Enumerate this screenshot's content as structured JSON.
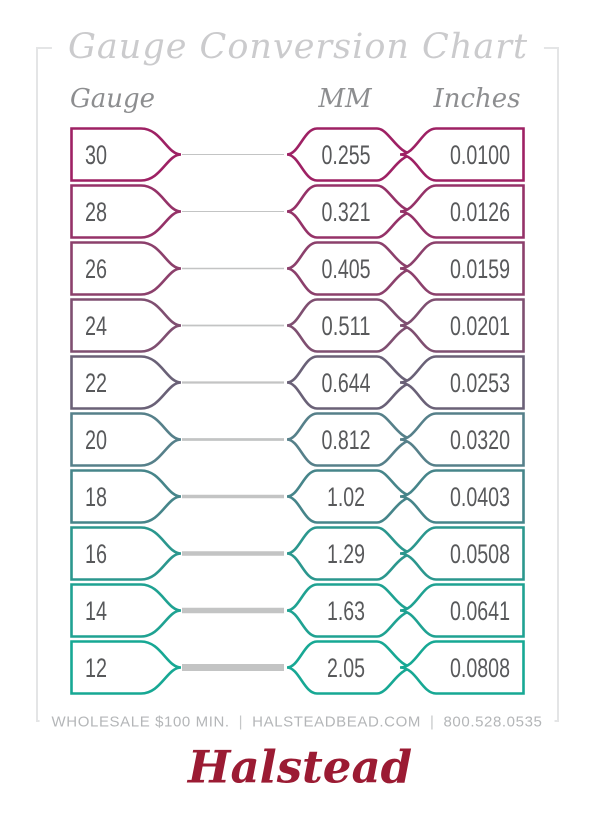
{
  "page": {
    "title": "Gauge Conversion Chart"
  },
  "columns": {
    "gauge": "Gauge",
    "mm": "MM",
    "inches": "Inches"
  },
  "rows": [
    {
      "gauge": "30",
      "mm": "0.255",
      "inches": "0.0100",
      "color": "#9e2164"
    },
    {
      "gauge": "28",
      "mm": "0.321",
      "inches": "0.0126",
      "color": "#953268"
    },
    {
      "gauge": "26",
      "mm": "0.405",
      "inches": "0.0159",
      "color": "#8c406c"
    },
    {
      "gauge": "24",
      "mm": "0.511",
      "inches": "0.0201",
      "color": "#7f4f71"
    },
    {
      "gauge": "22",
      "mm": "0.644",
      "inches": "0.0253",
      "color": "#6a6177"
    },
    {
      "gauge": "20",
      "mm": "0.812",
      "inches": "0.0320",
      "color": "#56808a"
    },
    {
      "gauge": "18",
      "mm": "1.02",
      "inches": "0.0403",
      "color": "#46858a"
    },
    {
      "gauge": "16",
      "mm": "1.29",
      "inches": "0.0508",
      "color": "#2b978e"
    },
    {
      "gauge": "14",
      "mm": "1.63",
      "inches": "0.0641",
      "color": "#1fa292"
    },
    {
      "gauge": "12",
      "mm": "2.05",
      "inches": "0.0808",
      "color": "#17a894"
    }
  ],
  "colors": {
    "wire": "#c3c4c4",
    "value_text": "#58595b",
    "frame": "#e4e5e6",
    "title_text": "#cbcbcd",
    "header_text": "#8d8e90",
    "footer_text": "#b4b6b8",
    "logo": "#9b1b33"
  },
  "footer": {
    "items": [
      "WHOLESALE $100 MIN.",
      "HALSTEADBEAD.COM",
      "800.528.0535"
    ],
    "separator": "|",
    "logo": "Halstead"
  },
  "chart_data": {
    "type": "table",
    "title": "Gauge Conversion Chart",
    "columns": [
      "Gauge",
      "MM",
      "Inches"
    ],
    "rows": [
      [
        30,
        0.255,
        0.01
      ],
      [
        28,
        0.321,
        0.0126
      ],
      [
        26,
        0.405,
        0.0159
      ],
      [
        24,
        0.511,
        0.0201
      ],
      [
        22,
        0.644,
        0.0253
      ],
      [
        20,
        0.812,
        0.032
      ],
      [
        18,
        1.02,
        0.0403
      ],
      [
        16,
        1.29,
        0.0508
      ],
      [
        14,
        1.63,
        0.0641
      ],
      [
        12,
        2.05,
        0.0808
      ]
    ],
    "notes": "Wire gauge conversion; illustrated wire thickness grows as gauge number decreases; outline color gradient magenta (30 ga) to teal (12 ga)"
  }
}
